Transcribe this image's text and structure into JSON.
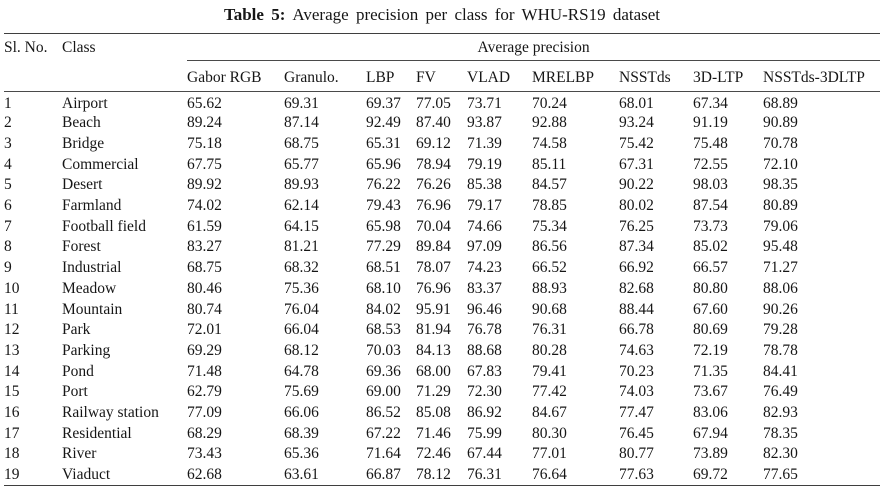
{
  "title": {
    "label": "Table 5:",
    "text": "Average precision per class for WHU-RS19 dataset"
  },
  "table": {
    "col1_header": "Sl. No.",
    "col2_header": "Class",
    "group_header": "Average precision",
    "method_columns": [
      "Gabor RGB",
      "Granulo.",
      "LBP",
      "FV",
      "VLAD",
      "MRELBP",
      "NSSTds",
      "3D-LTP",
      "NSSTds-3DLTP"
    ],
    "rows": [
      {
        "sl_no": "1",
        "class_name": "Airport",
        "values": [
          "65.62",
          "69.31",
          "69.37",
          "77.05",
          "73.71",
          "70.24",
          "68.01",
          "67.34",
          "68.89"
        ]
      },
      {
        "sl_no": "2",
        "class_name": "Beach",
        "values": [
          "89.24",
          "87.14",
          "92.49",
          "87.40",
          "93.87",
          "92.88",
          "93.24",
          "91.19",
          "90.89"
        ]
      },
      {
        "sl_no": "3",
        "class_name": "Bridge",
        "values": [
          "75.18",
          "68.75",
          "65.31",
          "69.12",
          "71.39",
          "74.58",
          "75.42",
          "75.48",
          "70.78"
        ]
      },
      {
        "sl_no": "4",
        "class_name": "Commercial",
        "values": [
          "67.75",
          "65.77",
          "65.96",
          "78.94",
          "79.19",
          "85.11",
          "67.31",
          "72.55",
          "72.10"
        ]
      },
      {
        "sl_no": "5",
        "class_name": "Desert",
        "values": [
          "89.92",
          "89.93",
          "76.22",
          "76.26",
          "85.38",
          "84.57",
          "90.22",
          "98.03",
          "98.35"
        ]
      },
      {
        "sl_no": "6",
        "class_name": "Farmland",
        "values": [
          "74.02",
          "62.14",
          "79.43",
          "76.96",
          "79.17",
          "78.85",
          "80.02",
          "87.54",
          "80.89"
        ]
      },
      {
        "sl_no": "7",
        "class_name": "Football field",
        "values": [
          "61.59",
          "64.15",
          "65.98",
          "70.04",
          "74.66",
          "75.34",
          "76.25",
          "73.73",
          "79.06"
        ]
      },
      {
        "sl_no": "8",
        "class_name": "Forest",
        "values": [
          "83.27",
          "81.21",
          "77.29",
          "89.84",
          "97.09",
          "86.56",
          "87.34",
          "85.02",
          "95.48"
        ]
      },
      {
        "sl_no": "9",
        "class_name": "Industrial",
        "values": [
          "68.75",
          "68.32",
          "68.51",
          "78.07",
          "74.23",
          "66.52",
          "66.92",
          "66.57",
          "71.27"
        ]
      },
      {
        "sl_no": "10",
        "class_name": "Meadow",
        "values": [
          "80.46",
          "75.36",
          "68.10",
          "76.96",
          "83.37",
          "88.93",
          "82.68",
          "80.80",
          "88.06"
        ]
      },
      {
        "sl_no": "11",
        "class_name": "Mountain",
        "values": [
          "80.74",
          "76.04",
          "84.02",
          "95.91",
          "96.46",
          "90.68",
          "88.44",
          "67.60",
          "90.26"
        ]
      },
      {
        "sl_no": "12",
        "class_name": "Park",
        "values": [
          "72.01",
          "66.04",
          "68.53",
          "81.94",
          "76.78",
          "76.31",
          "66.78",
          "80.69",
          "79.28"
        ]
      },
      {
        "sl_no": "13",
        "class_name": "Parking",
        "values": [
          "69.29",
          "68.12",
          "70.03",
          "84.13",
          "88.68",
          "80.28",
          "74.63",
          "72.19",
          "78.78"
        ]
      },
      {
        "sl_no": "14",
        "class_name": "Pond",
        "values": [
          "71.48",
          "64.78",
          "69.36",
          "68.00",
          "67.83",
          "79.41",
          "70.23",
          "71.35",
          "84.41"
        ]
      },
      {
        "sl_no": "15",
        "class_name": "Port",
        "values": [
          "62.79",
          "75.69",
          "69.00",
          "71.29",
          "72.30",
          "77.42",
          "74.03",
          "73.67",
          "76.49"
        ]
      },
      {
        "sl_no": "16",
        "class_name": "Railway station",
        "values": [
          "77.09",
          "66.06",
          "86.52",
          "85.08",
          "86.92",
          "84.67",
          "77.47",
          "83.06",
          "82.93"
        ]
      },
      {
        "sl_no": "17",
        "class_name": "Residential",
        "values": [
          "68.29",
          "68.39",
          "67.22",
          "71.46",
          "75.99",
          "80.30",
          "76.45",
          "67.94",
          "78.35"
        ]
      },
      {
        "sl_no": "18",
        "class_name": "River",
        "values": [
          "73.43",
          "65.36",
          "71.64",
          "72.46",
          "67.44",
          "77.01",
          "80.77",
          "73.89",
          "82.30"
        ]
      },
      {
        "sl_no": "19",
        "class_name": "Viaduct",
        "values": [
          "62.68",
          "63.61",
          "66.87",
          "78.12",
          "76.31",
          "76.64",
          "77.63",
          "69.72",
          "77.65"
        ]
      }
    ]
  },
  "colors": {
    "background": "#ffffff",
    "text": "#161616",
    "rule": "#4a4a4a"
  }
}
